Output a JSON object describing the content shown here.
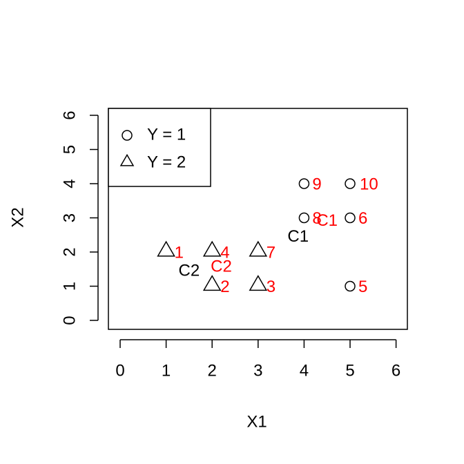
{
  "chart_data": {
    "type": "scatter",
    "title": "",
    "xlabel": "X1",
    "ylabel": "X2",
    "xlim": [
      0,
      6
    ],
    "ylim": [
      0,
      6
    ],
    "x_ticks": [
      "0",
      "1",
      "2",
      "3",
      "4",
      "5",
      "6"
    ],
    "y_ticks": [
      "0",
      "1",
      "2",
      "3",
      "4",
      "5",
      "6"
    ],
    "grid": false,
    "legend_position": "top-left",
    "legend": [
      {
        "label": "Y = 1",
        "symbol": "circle"
      },
      {
        "label": "Y = 2",
        "symbol": "triangle"
      }
    ],
    "points": [
      {
        "id": "1",
        "x": 1,
        "y": 2,
        "symbol": "triangle"
      },
      {
        "id": "2",
        "x": 2,
        "y": 1,
        "symbol": "triangle"
      },
      {
        "id": "3",
        "x": 3,
        "y": 1,
        "symbol": "triangle"
      },
      {
        "id": "4",
        "x": 2,
        "y": 2,
        "symbol": "triangle"
      },
      {
        "id": "5",
        "x": 5,
        "y": 1,
        "symbol": "circle"
      },
      {
        "id": "6",
        "x": 5,
        "y": 3,
        "symbol": "circle"
      },
      {
        "id": "7",
        "x": 3,
        "y": 2,
        "symbol": "triangle"
      },
      {
        "id": "8",
        "x": 4,
        "y": 3,
        "symbol": "circle"
      },
      {
        "id": "9",
        "x": 4,
        "y": 4,
        "symbol": "circle"
      },
      {
        "id": "10",
        "x": 5,
        "y": 4,
        "symbol": "circle"
      }
    ],
    "annotations": [
      {
        "text": "C1",
        "x": 3.87,
        "y": 2.43,
        "color": "#000000"
      },
      {
        "text": "C2",
        "x": 1.5,
        "y": 1.43,
        "color": "#000000"
      },
      {
        "text": "C1",
        "x": 4.5,
        "y": 2.9,
        "color": "#ff0000"
      },
      {
        "text": "C2",
        "x": 2.2,
        "y": 1.55,
        "color": "#ff0000"
      }
    ],
    "colors": {
      "points": "#000000",
      "point_labels": "#ff0000",
      "axes": "#000000"
    }
  }
}
